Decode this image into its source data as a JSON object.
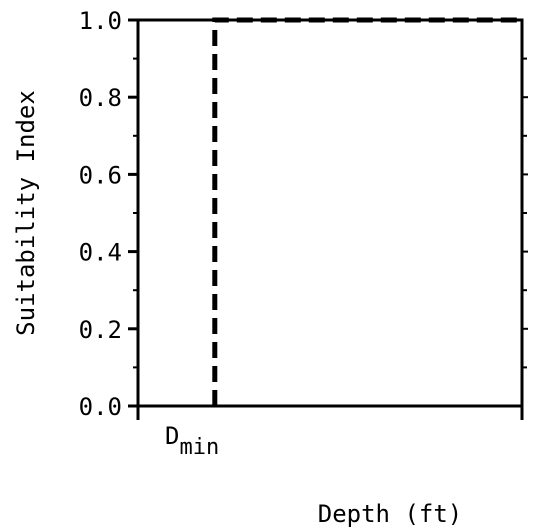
{
  "chart_data": {
    "type": "line",
    "title": "",
    "xlabel": "Depth (ft)",
    "ylabel": "Suitability Index",
    "ylim": [
      0,
      1
    ],
    "yticks": [
      0.0,
      0.2,
      0.4,
      0.6,
      0.8,
      1.0
    ],
    "ytick_labels": [
      "0.0",
      "0.2",
      "0.4",
      "0.6",
      "0.8",
      "1.0"
    ],
    "xtick_labels": [
      {
        "label": "D",
        "subscript": "min",
        "x": 0.2
      }
    ],
    "xlim": [
      0,
      1
    ],
    "series": [
      {
        "style": "dashed",
        "points": [
          {
            "x": 0.2,
            "y": 0.0
          },
          {
            "x": 0.2,
            "y": 1.0
          },
          {
            "x": 1.0,
            "y": 1.0
          }
        ]
      }
    ],
    "grid": false
  }
}
